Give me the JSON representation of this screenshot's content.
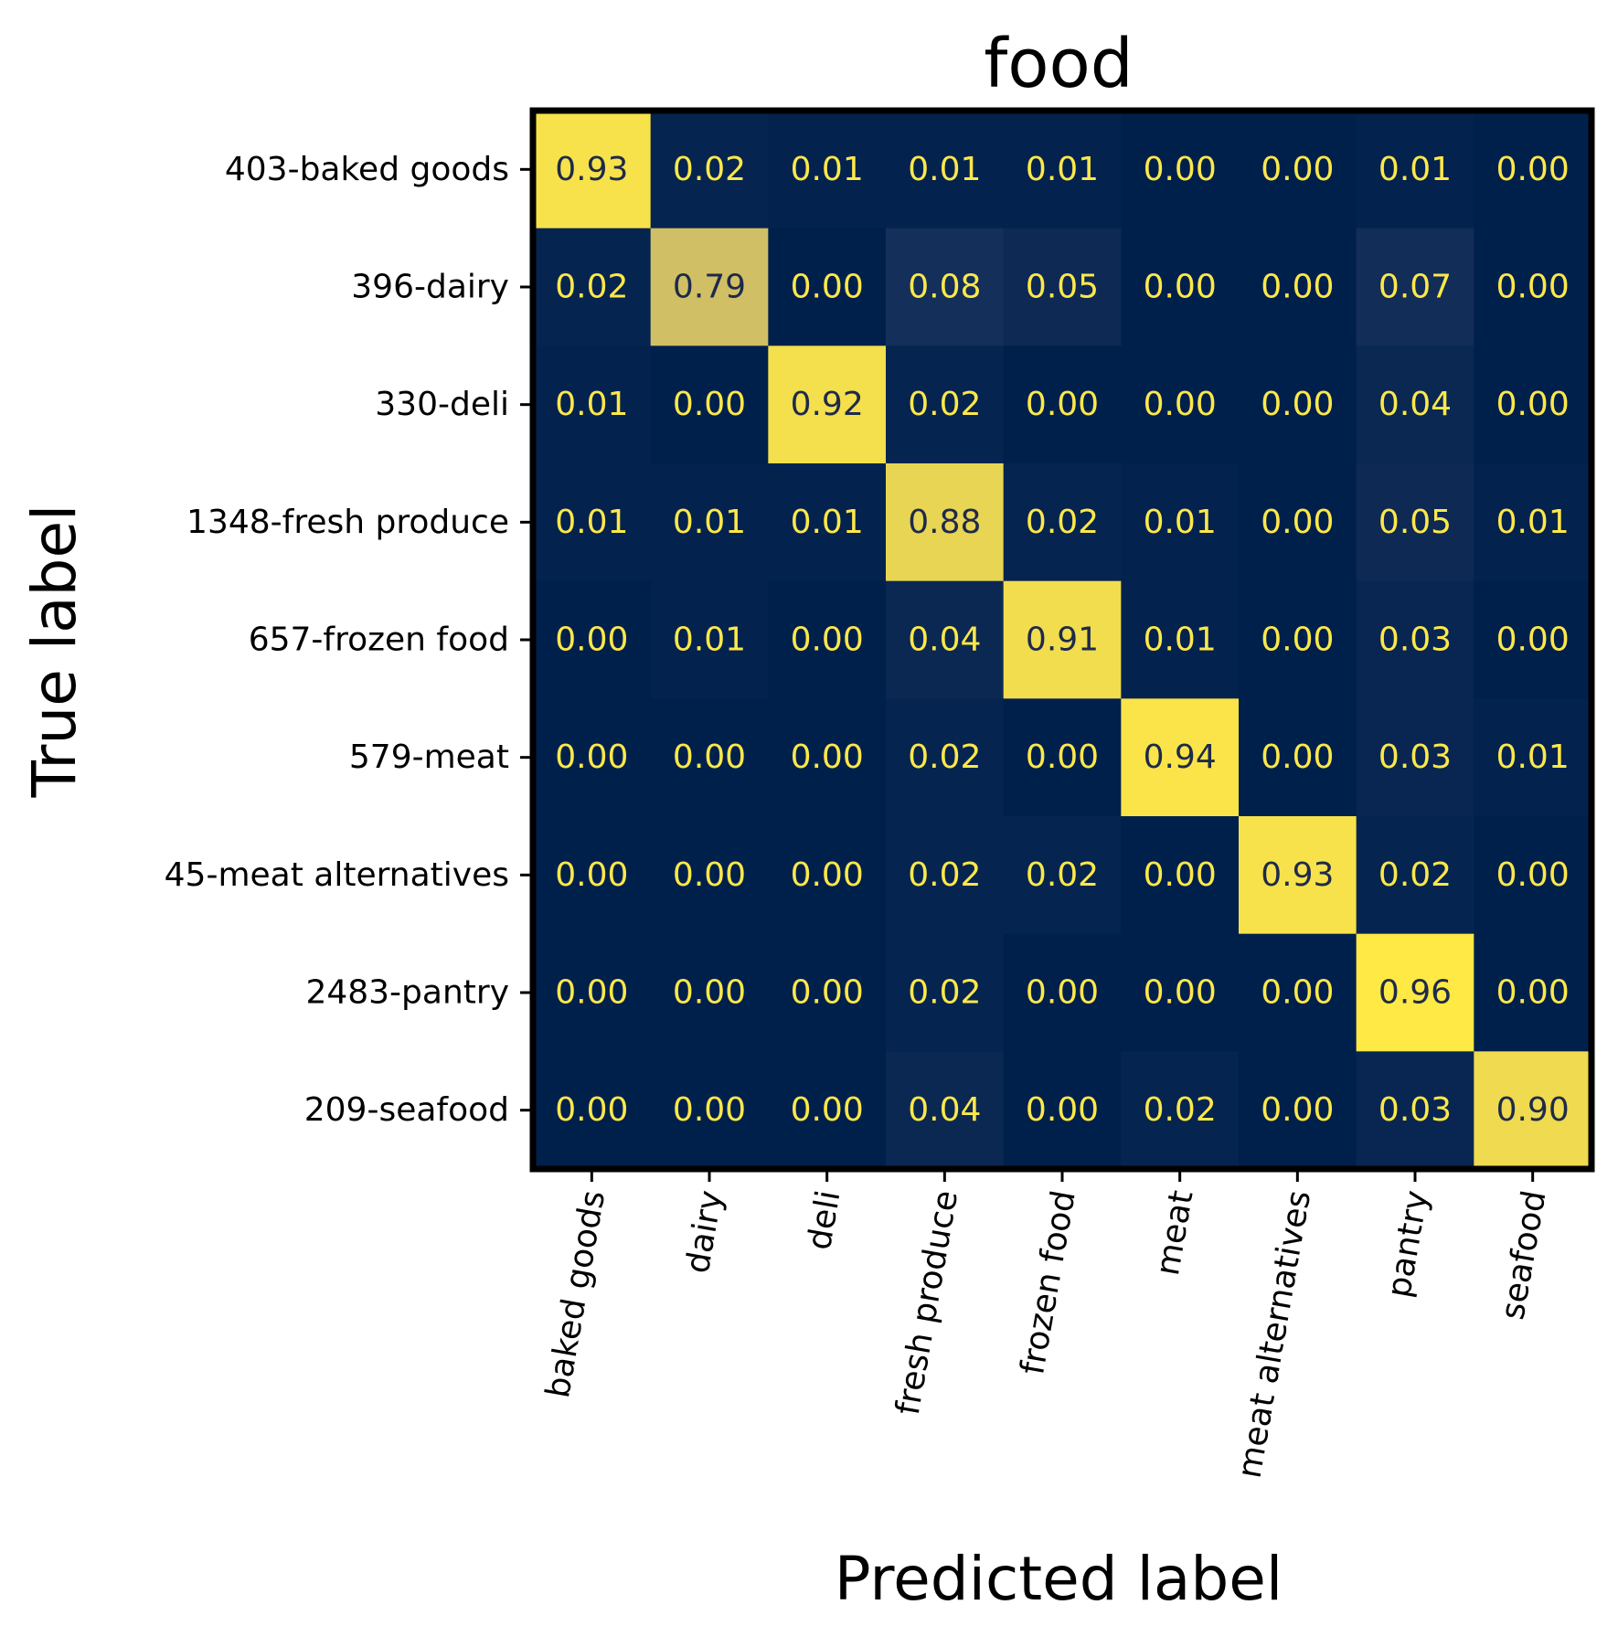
{
  "chart_data": {
    "type": "heatmap",
    "title": "food",
    "xlabel": "Predicted label",
    "ylabel": "True label",
    "x_categories": [
      "baked goods",
      "dairy",
      "deli",
      "fresh produce",
      "frozen food",
      "meat",
      "meat alternatives",
      "pantry",
      "seafood"
    ],
    "y_categories": [
      "403-baked goods",
      "396-dairy",
      "330-deli",
      "1348-fresh produce",
      "657-frozen food",
      "579-meat",
      "45-meat alternatives",
      "2483-pantry",
      "209-seafood"
    ],
    "values": [
      [
        0.93,
        0.02,
        0.01,
        0.01,
        0.01,
        0.0,
        0.0,
        0.01,
        0.0
      ],
      [
        0.02,
        0.79,
        0.0,
        0.08,
        0.05,
        0.0,
        0.0,
        0.07,
        0.0
      ],
      [
        0.01,
        0.0,
        0.92,
        0.02,
        0.0,
        0.0,
        0.0,
        0.04,
        0.0
      ],
      [
        0.01,
        0.01,
        0.01,
        0.88,
        0.02,
        0.01,
        0.0,
        0.05,
        0.01
      ],
      [
        0.0,
        0.01,
        0.0,
        0.04,
        0.91,
        0.01,
        0.0,
        0.03,
        0.0
      ],
      [
        0.0,
        0.0,
        0.0,
        0.02,
        0.0,
        0.94,
        0.0,
        0.03,
        0.01
      ],
      [
        0.0,
        0.0,
        0.0,
        0.02,
        0.02,
        0.0,
        0.93,
        0.02,
        0.0
      ],
      [
        0.0,
        0.0,
        0.0,
        0.02,
        0.0,
        0.0,
        0.0,
        0.96,
        0.0
      ],
      [
        0.0,
        0.0,
        0.0,
        0.04,
        0.0,
        0.02,
        0.0,
        0.03,
        0.9
      ]
    ],
    "value_format": "0.00",
    "colormap": "cividis",
    "colorscale": [
      "#00204c",
      "#31446b",
      "#666970",
      "#958f78",
      "#cbba69",
      "#ffe945"
    ],
    "vmin": 0,
    "vmax": 0.96,
    "text_color_light": "#fde84a",
    "text_color_dark": "#1e2a4a",
    "legend": "none",
    "grid": false
  }
}
